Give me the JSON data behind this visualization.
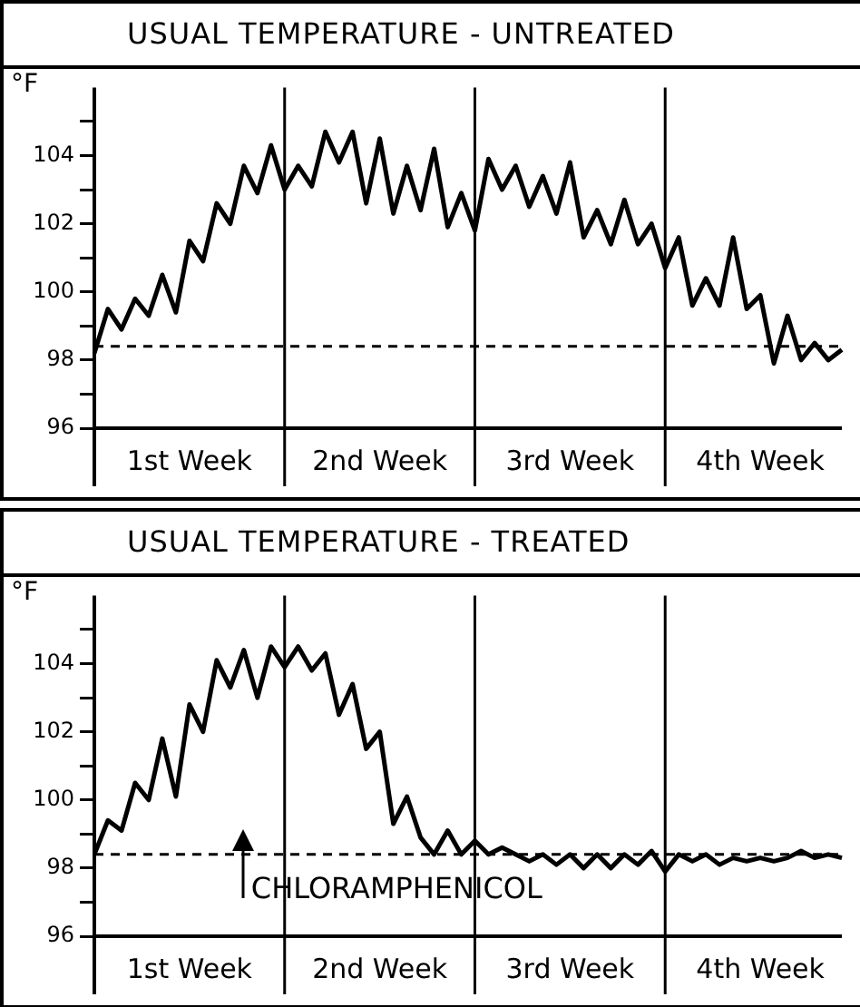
{
  "chart_data": [
    {
      "type": "line",
      "title": "USUAL TEMPERATURE - UNTREATED",
      "ylabel": "°F",
      "marker": "none",
      "line_style": "solid",
      "grid": false,
      "legend": false,
      "categories": [
        null,
        null,
        null,
        null,
        null,
        null,
        null,
        "1st Week",
        null,
        null,
        null,
        null,
        null,
        null,
        null,
        null,
        null,
        null,
        null,
        null,
        null,
        "2nd Week",
        null,
        null,
        null,
        null,
        null,
        null,
        null,
        null,
        null,
        null,
        null,
        null,
        null,
        "3rd Week",
        null,
        null,
        null,
        null,
        null,
        null,
        null,
        null,
        null,
        null,
        null,
        null,
        null,
        "4th Week",
        null,
        null,
        null,
        null,
        null,
        null
      ],
      "ylim": [
        96,
        106
      ],
      "yticks": [
        96,
        {
          "value": 97,
          "label": null
        },
        98,
        {
          "value": 99,
          "label": null
        },
        100,
        {
          "value": 101,
          "label": null
        },
        102,
        {
          "value": 103,
          "label": null
        },
        104,
        {
          "value": 105,
          "label": null
        }
      ],
      "ref_lines": [
        {
          "axis": "y",
          "value": 98.4,
          "line_style": "dashed",
          "color": "#000000"
        }
      ],
      "series": [
        {
          "color": "#000000",
          "values": [
            98.2,
            99.5,
            98.9,
            99.8,
            99.3,
            100.5,
            99.4,
            101.5,
            100.9,
            102.6,
            102.0,
            103.7,
            102.9,
            104.3,
            103.0,
            103.7,
            103.1,
            104.7,
            103.8,
            104.7,
            102.6,
            104.5,
            102.3,
            103.7,
            102.4,
            104.2,
            101.9,
            102.9,
            101.8,
            103.9,
            103.0,
            103.7,
            102.5,
            103.4,
            102.3,
            103.8,
            101.6,
            102.4,
            101.4,
            102.7,
            101.4,
            102.0,
            100.7,
            101.6,
            99.6,
            100.4,
            99.6,
            101.6,
            99.5,
            99.9,
            97.9,
            99.3,
            98.0,
            98.5,
            98.0,
            98.3
          ]
        }
      ]
    },
    {
      "type": "line",
      "title": "USUAL TEMPERATURE - TREATED",
      "ylabel": "°F",
      "marker": "none",
      "line_style": "solid",
      "grid": false,
      "legend": false,
      "categories": [
        null,
        null,
        null,
        null,
        null,
        null,
        null,
        "1st Week",
        null,
        null,
        null,
        null,
        null,
        null,
        null,
        null,
        null,
        null,
        null,
        null,
        null,
        "2nd Week",
        null,
        null,
        null,
        null,
        null,
        null,
        null,
        null,
        null,
        null,
        null,
        null,
        null,
        "3rd Week",
        null,
        null,
        null,
        null,
        null,
        null,
        null,
        null,
        null,
        null,
        null,
        null,
        null,
        "4th Week",
        null,
        null,
        null,
        null,
        null,
        null
      ],
      "ylim": [
        96,
        106
      ],
      "yticks": [
        96,
        {
          "value": 97,
          "label": null
        },
        98,
        {
          "value": 99,
          "label": null
        },
        100,
        {
          "value": 101,
          "label": null
        },
        102,
        {
          "value": 103,
          "label": null
        },
        104,
        {
          "value": 105,
          "label": null
        }
      ],
      "ref_lines": [
        {
          "axis": "y",
          "value": 98.4,
          "line_style": "dashed",
          "color": "#000000"
        }
      ],
      "annotations": [
        "CHLORAMPHENICOL"
      ],
      "series": [
        {
          "color": "#000000",
          "values": [
            98.4,
            99.4,
            99.1,
            100.5,
            100.0,
            101.8,
            100.1,
            102.8,
            102.0,
            104.1,
            103.3,
            104.4,
            103.0,
            104.5,
            103.9,
            104.5,
            103.8,
            104.3,
            102.5,
            103.4,
            101.5,
            102.0,
            99.3,
            100.1,
            98.9,
            98.4,
            99.1,
            98.4,
            98.8,
            98.4,
            98.6,
            98.4,
            98.2,
            98.4,
            98.1,
            98.4,
            98.0,
            98.4,
            98.0,
            98.4,
            98.1,
            98.5,
            97.9,
            98.4,
            98.2,
            98.4,
            98.1,
            98.3,
            98.2,
            98.3,
            98.2,
            98.3,
            98.5,
            98.3,
            98.4,
            98.3
          ]
        }
      ]
    }
  ]
}
